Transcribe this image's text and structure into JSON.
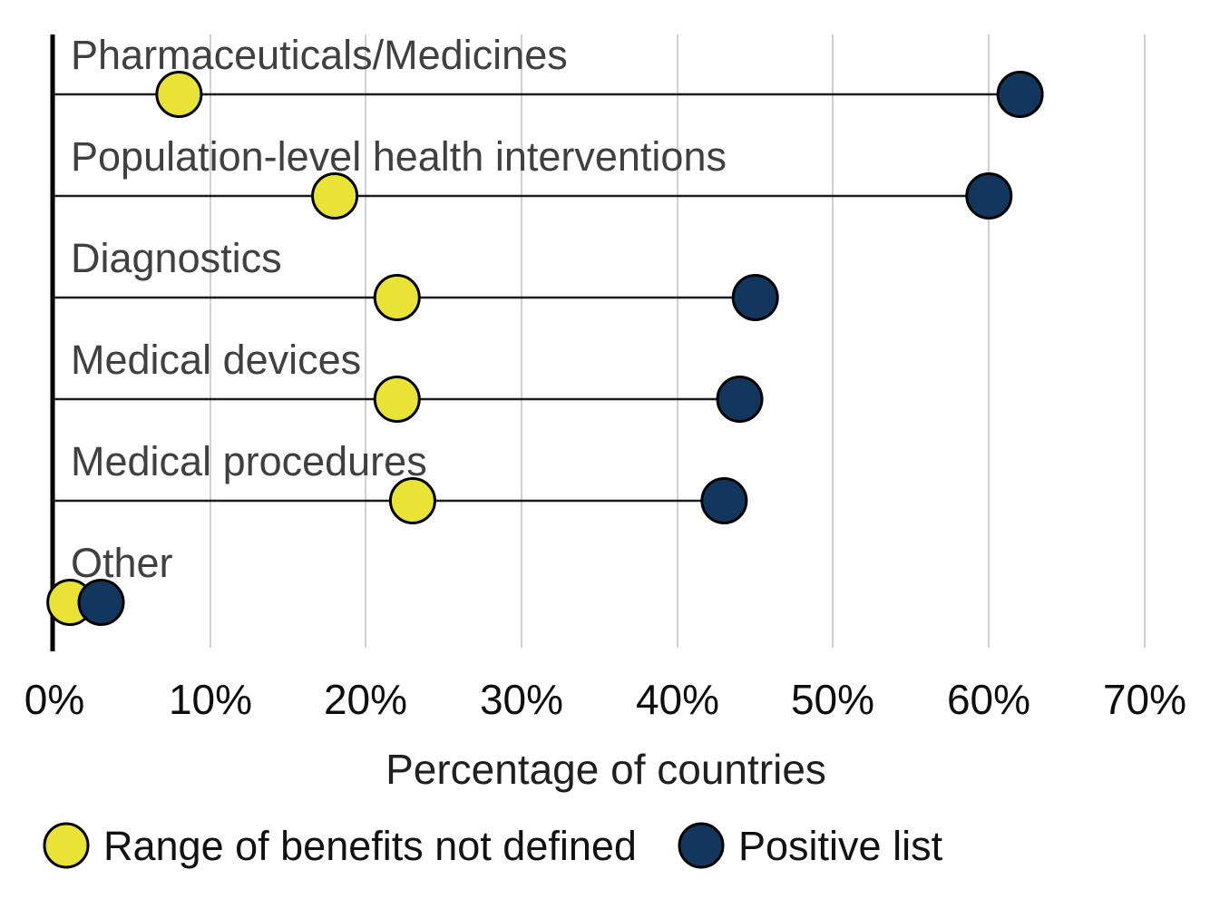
{
  "chart_data": {
    "type": "scatter",
    "variant": "dumbbell-lollipop",
    "title": "",
    "xlabel": "Percentage of countries",
    "ylabel": "",
    "xlim": [
      0,
      70
    ],
    "x_tick_labels": [
      "0%",
      "10%",
      "20%",
      "30%",
      "40%",
      "50%",
      "60%",
      "70%"
    ],
    "x_tick_values": [
      0,
      10,
      20,
      30,
      40,
      50,
      60,
      70
    ],
    "grid": "vertical gridlines on, horizontal off",
    "legend_position": "bottom",
    "categories": [
      "Pharmaceuticals/Medicines",
      "Population-level health interventions",
      "Diagnostics",
      "Medical devices",
      "Medical procedures",
      "Other"
    ],
    "series": [
      {
        "name": "Range of benefits not defined",
        "color": "#e8e335",
        "values": [
          8,
          18,
          22,
          22,
          23,
          1
        ]
      },
      {
        "name": "Positive list",
        "color": "#13365f",
        "values": [
          62,
          60,
          45,
          44,
          43,
          3
        ]
      }
    ]
  },
  "colors": {
    "background": "#ffffff",
    "category_text": "#404040",
    "tick_text": "#0d0d0d",
    "axis_title_text": "#1f1f1f",
    "legend_text": "#111111",
    "gridline": "#d0d0d0",
    "axis_line": "#000000",
    "row_line": "#1a1a1a",
    "dot_stroke": "#000000"
  }
}
